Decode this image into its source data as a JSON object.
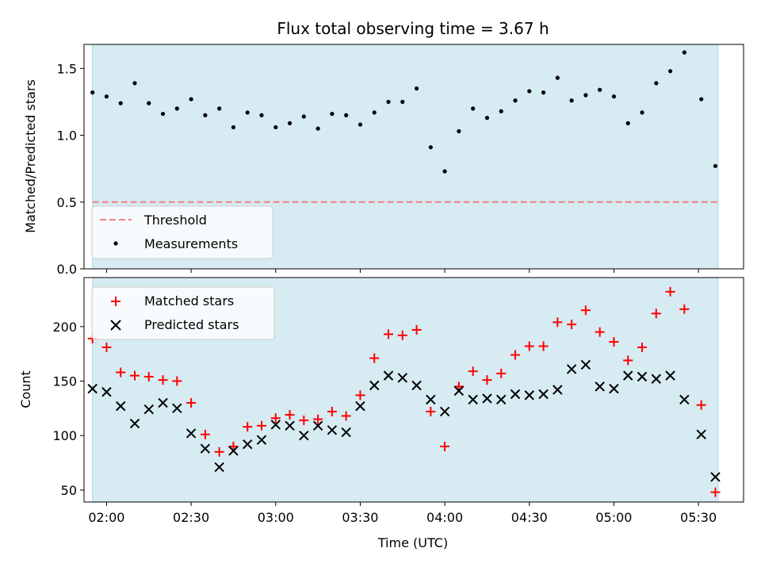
{
  "chart_data": [
    {
      "type": "scatter",
      "title": "Flux total observing time = 3.67 h",
      "xlabel": "",
      "ylabel": "Matched/Predicted stars",
      "xlim": [
        "01:52",
        "05:46"
      ],
      "ylim": [
        0,
        1.68
      ],
      "yticks": [
        "0.0",
        "0.5",
        "1.0",
        "1.5"
      ],
      "grid": false,
      "observing_window": [
        "01:55",
        "05:37"
      ],
      "threshold": {
        "name": "Threshold",
        "value": 0.5,
        "color": "#f08080"
      },
      "legend": {
        "placement": "lower-left"
      },
      "series": [
        {
          "name": "Measurements",
          "color": "#000000",
          "x": [
            "01:55",
            "02:00",
            "02:05",
            "02:10",
            "02:15",
            "02:20",
            "02:25",
            "02:30",
            "02:35",
            "02:40",
            "02:45",
            "02:50",
            "02:55",
            "03:00",
            "03:05",
            "03:10",
            "03:15",
            "03:20",
            "03:25",
            "03:30",
            "03:35",
            "03:40",
            "03:45",
            "03:50",
            "03:55",
            "04:00",
            "04:05",
            "04:10",
            "04:15",
            "04:20",
            "04:25",
            "04:30",
            "04:35",
            "04:40",
            "04:45",
            "04:50",
            "04:55",
            "05:00",
            "05:05",
            "05:10",
            "05:15",
            "05:20",
            "05:25",
            "05:31",
            "05:36"
          ],
          "y": [
            1.32,
            1.29,
            1.24,
            1.39,
            1.24,
            1.16,
            1.2,
            1.27,
            1.15,
            1.2,
            1.06,
            1.17,
            1.15,
            1.06,
            1.09,
            1.14,
            1.05,
            1.16,
            1.15,
            1.08,
            1.17,
            1.25,
            1.25,
            1.35,
            0.91,
            0.73,
            1.03,
            1.2,
            1.13,
            1.18,
            1.26,
            1.33,
            1.32,
            1.43,
            1.26,
            1.3,
            1.34,
            1.29,
            1.09,
            1.17,
            1.39,
            1.48,
            1.62,
            1.27,
            0.77
          ]
        }
      ]
    },
    {
      "type": "scatter",
      "title": "",
      "xlabel": "Time (UTC)",
      "ylabel": "Count",
      "xlim": [
        "01:52",
        "05:46"
      ],
      "ylim": [
        39,
        245
      ],
      "yticks": [
        "50",
        "100",
        "150",
        "200"
      ],
      "xticks": [
        "02:00",
        "02:30",
        "03:00",
        "03:30",
        "04:00",
        "04:30",
        "05:00",
        "05:30"
      ],
      "grid": false,
      "observing_window": [
        "01:55",
        "05:37"
      ],
      "legend": {
        "placement": "upper-left"
      },
      "series": [
        {
          "name": "Matched stars",
          "color": "#ff0000",
          "marker": "plus",
          "x": [
            "01:55",
            "02:00",
            "02:05",
            "02:10",
            "02:15",
            "02:20",
            "02:25",
            "02:30",
            "02:35",
            "02:40",
            "02:45",
            "02:50",
            "02:55",
            "03:00",
            "03:05",
            "03:10",
            "03:15",
            "03:20",
            "03:25",
            "03:30",
            "03:35",
            "03:40",
            "03:45",
            "03:50",
            "03:55",
            "04:00",
            "04:05",
            "04:10",
            "04:15",
            "04:20",
            "04:25",
            "04:30",
            "04:35",
            "04:40",
            "04:45",
            "04:50",
            "04:55",
            "05:00",
            "05:05",
            "05:10",
            "05:15",
            "05:20",
            "05:25",
            "05:31",
            "05:36"
          ],
          "y": [
            189,
            181,
            158,
            155,
            154,
            151,
            150,
            130,
            101,
            85,
            90,
            108,
            109,
            116,
            119,
            114,
            115,
            122,
            118,
            137,
            171,
            193,
            192,
            197,
            122,
            90,
            145,
            159,
            151,
            157,
            174,
            182,
            182,
            204,
            202,
            215,
            195,
            186,
            169,
            181,
            212,
            232,
            216,
            128,
            48
          ]
        },
        {
          "name": "Predicted stars",
          "color": "#000000",
          "marker": "x",
          "x": [
            "01:55",
            "02:00",
            "02:05",
            "02:10",
            "02:15",
            "02:20",
            "02:25",
            "02:30",
            "02:35",
            "02:40",
            "02:45",
            "02:50",
            "02:55",
            "03:00",
            "03:05",
            "03:10",
            "03:15",
            "03:20",
            "03:25",
            "03:30",
            "03:35",
            "03:40",
            "03:45",
            "03:50",
            "03:55",
            "04:00",
            "04:05",
            "04:10",
            "04:15",
            "04:20",
            "04:25",
            "04:30",
            "04:35",
            "04:40",
            "04:45",
            "04:50",
            "04:55",
            "05:00",
            "05:05",
            "05:10",
            "05:15",
            "05:20",
            "05:25",
            "05:31",
            "05:36"
          ],
          "y": [
            143,
            140,
            127,
            111,
            124,
            130,
            125,
            102,
            88,
            71,
            86,
            92,
            96,
            110,
            109,
            100,
            109,
            105,
            103,
            127,
            146,
            155,
            153,
            146,
            133,
            122,
            141,
            133,
            134,
            133,
            138,
            137,
            138,
            142,
            161,
            165,
            145,
            143,
            155,
            154,
            152,
            155,
            133,
            101,
            62
          ]
        }
      ]
    }
  ]
}
